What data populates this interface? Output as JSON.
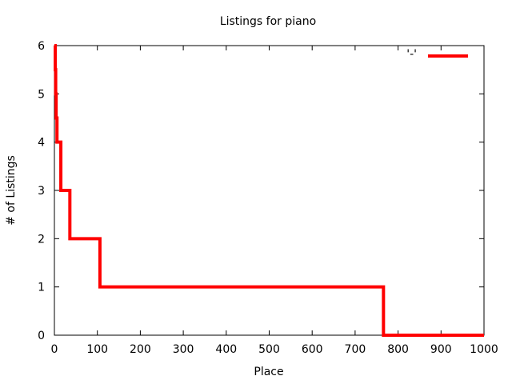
{
  "chart_data": {
    "type": "line",
    "title": "Listings for piano",
    "xlabel": "Place",
    "ylabel": "# of Listings",
    "xlim": [
      0,
      1000
    ],
    "ylim": [
      0,
      6
    ],
    "xticks": [
      "0",
      "100",
      "200",
      "300",
      "400",
      "500",
      "600",
      "700",
      "800",
      "900",
      "1000"
    ],
    "yticks": [
      "0",
      "1",
      "2",
      "3",
      "4",
      "5",
      "6"
    ],
    "grid": false,
    "legend": {
      "placement": "top-right",
      "entries": [
        {
          "label": "'-'",
          "color": "#ff0000"
        }
      ]
    },
    "series": [
      {
        "color": "#ff0000",
        "step": true,
        "x": [
          0,
          1,
          2,
          3,
          4,
          6,
          8,
          12,
          15,
          35,
          36,
          105,
          106,
          765,
          766,
          1000
        ],
        "y": [
          6,
          6,
          5.5,
          5,
          4.5,
          4,
          4,
          4,
          3,
          3,
          2,
          2,
          1,
          1,
          0,
          0
        ]
      }
    ]
  }
}
